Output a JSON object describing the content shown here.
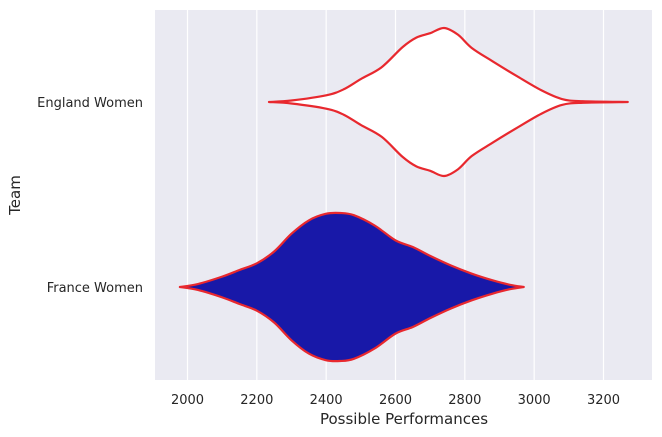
{
  "chart_data": {
    "type": "violin",
    "orientation": "horizontal",
    "xlabel": "Possible Performances",
    "ylabel": "Team",
    "xlim": [
      1910,
      3310
    ],
    "xticks": [
      2000,
      2200,
      2400,
      2600,
      2800,
      3000,
      3200
    ],
    "grid": "vertical",
    "categories": [
      "England Women",
      "France Women"
    ],
    "series": [
      {
        "category": "England Women",
        "fill": "#ffffff",
        "edge": "#e8282e",
        "profile": [
          [
            2235,
            0.0
          ],
          [
            2300,
            0.02
          ],
          [
            2400,
            0.09
          ],
          [
            2450,
            0.17
          ],
          [
            2500,
            0.31
          ],
          [
            2560,
            0.47
          ],
          [
            2620,
            0.74
          ],
          [
            2660,
            0.87
          ],
          [
            2700,
            0.93
          ],
          [
            2740,
            1.0
          ],
          [
            2780,
            0.91
          ],
          [
            2820,
            0.73
          ],
          [
            2880,
            0.55
          ],
          [
            2950,
            0.35
          ],
          [
            3020,
            0.16
          ],
          [
            3080,
            0.04
          ],
          [
            3140,
            0.01
          ],
          [
            3270,
            0.0
          ]
        ]
      },
      {
        "category": "France Women",
        "fill": "#1818a8",
        "edge": "#e8282e",
        "profile": [
          [
            1978,
            0.0
          ],
          [
            2030,
            0.04
          ],
          [
            2100,
            0.14
          ],
          [
            2150,
            0.23
          ],
          [
            2200,
            0.32
          ],
          [
            2250,
            0.48
          ],
          [
            2300,
            0.72
          ],
          [
            2350,
            0.9
          ],
          [
            2400,
            0.99
          ],
          [
            2440,
            1.0
          ],
          [
            2480,
            0.97
          ],
          [
            2540,
            0.83
          ],
          [
            2600,
            0.63
          ],
          [
            2650,
            0.54
          ],
          [
            2700,
            0.42
          ],
          [
            2760,
            0.29
          ],
          [
            2820,
            0.18
          ],
          [
            2880,
            0.09
          ],
          [
            2930,
            0.03
          ],
          [
            2970,
            0.0
          ]
        ]
      }
    ]
  }
}
